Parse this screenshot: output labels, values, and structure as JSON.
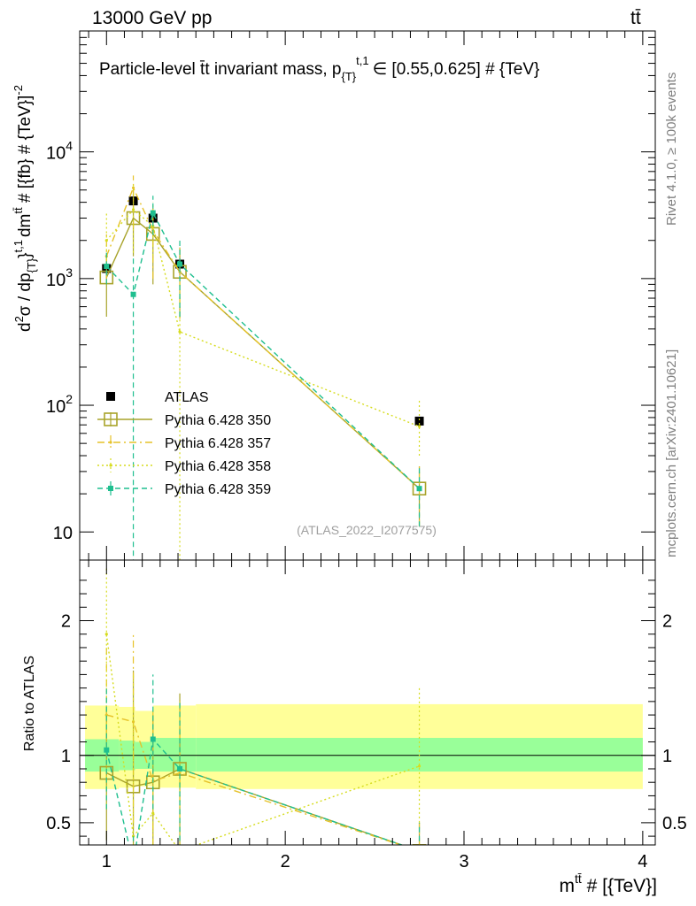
{
  "header": {
    "energy_label": "13000 GeV pp",
    "process_label": "tt̄"
  },
  "side_labels": {
    "rivet": "Rivet 4.1.0, ≥ 100k events",
    "mcplots": "mcplots.cern.ch [arXiv:2401.10621]"
  },
  "chart_data": {
    "type": "scatter",
    "title": "Particle-level t̄t invariant mass, p_{T}^{t,1} ∈ [0.55,0.625] # {TeV}",
    "title_parts": {
      "main": "Particle-level t̄t invariant mass, p",
      "sub": "{T}",
      "sup": "t,1",
      "rest": "∈ [0.55,0.625] # {TeV}"
    },
    "ylabel": "d²σ / dp_{T}^{t,1} dm^{tt̄} # [{fb} # {TeV}⁻²]",
    "ylabel_parts": {
      "a": "d",
      "b": "σ / dp",
      "c": "{T}",
      "d": "}",
      "e": "dm",
      "f": "tt̄",
      "g": " # [{fb} # {TeV}]"
    },
    "ylabel_sups": {
      "s1": "2",
      "s2": "t,1",
      "s3": "-2"
    },
    "xlabel": "m^{tt̄} # [{TeV}]",
    "xlabel_parts": {
      "main": "m",
      "sup": "tt̄",
      "rest": " # [{TeV}]"
    },
    "ratio_ylabel": "Ratio to ATLAS",
    "watermark": "(ATLAS_2022_I2077575)",
    "xlim": [
      0.85,
      4.07
    ],
    "ylim_main": [
      6,
      90000
    ],
    "ylim_ratio": [
      0.335,
      2.45
    ],
    "main_yticks": [
      {
        "value": 10,
        "base": "10",
        "exp": ""
      },
      {
        "value": 100,
        "base": "10",
        "exp": "2"
      },
      {
        "value": 1000,
        "base": "10",
        "exp": "3"
      },
      {
        "value": 10000,
        "base": "10",
        "exp": "4"
      }
    ],
    "ratio_yticks": [
      {
        "value": 0.5,
        "label": "0.5"
      },
      {
        "value": 1,
        "label": "1"
      },
      {
        "value": 2,
        "label": "2"
      }
    ],
    "xticks": [
      {
        "value": 1,
        "label": "1"
      },
      {
        "value": 2,
        "label": "2"
      },
      {
        "value": 3,
        "label": "3"
      },
      {
        "value": 4,
        "label": "4"
      }
    ],
    "bins": [
      [
        0.88,
        1.07
      ],
      [
        1.07,
        1.16
      ],
      [
        1.16,
        1.26
      ],
      [
        1.26,
        1.5
      ],
      [
        1.5,
        4.0
      ]
    ],
    "band_inner": [
      [
        0.88,
        1.12
      ],
      [
        1.07,
        1.11
      ],
      [
        1.16,
        1.1
      ],
      [
        1.26,
        1.13
      ],
      [
        1.5,
        1.13
      ]
    ],
    "band_inner_low": [
      0.88,
      0.89,
      0.9,
      0.88,
      0.88
    ],
    "band_outer_high": [
      1.37,
      1.36,
      1.33,
      1.37,
      1.38
    ],
    "band_outer_low": [
      0.75,
      0.76,
      0.77,
      0.76,
      0.75
    ],
    "series": [
      {
        "name": "ATLAS",
        "kind": "data",
        "color": "#000000",
        "x": [
          1.0,
          1.15,
          1.26,
          1.41,
          2.75
        ],
        "values": [
          1200,
          4100,
          3000,
          1300,
          75
        ],
        "ratio": [
          1,
          1,
          1,
          1,
          1
        ]
      },
      {
        "name": "Pythia 6.428 350",
        "kind": "line-open-square",
        "color": "#a8a32a",
        "dash": "",
        "x": [
          1.0,
          1.15,
          1.26,
          1.41,
          2.75
        ],
        "values": [
          1020,
          3000,
          2250,
          1130,
          22
        ],
        "err_low": [
          500,
          1500,
          900,
          490,
          11
        ],
        "err_high": [
          1500,
          5000,
          3500,
          1760,
          33
        ],
        "ratio": [
          0.87,
          0.77,
          0.8,
          0.9,
          0.29
        ],
        "ratio_err_low": [
          0.37,
          0.0,
          0.3,
          0.3,
          0.1
        ],
        "ratio_err_high": [
          1.37,
          1.63,
          1.3,
          1.46,
          0.5
        ]
      },
      {
        "name": "Pythia 6.428 357",
        "kind": "dash-dot",
        "color": "#e6c229",
        "dash": "8,4,2,4",
        "x": [
          1.0,
          1.15,
          1.26,
          1.41,
          2.75
        ],
        "values": [
          1500,
          5200,
          2400,
          1130,
          22
        ],
        "err_low": [
          1000,
          2500,
          1000,
          480,
          11
        ],
        "err_high": [
          2300,
          6500,
          3800,
          1800,
          33
        ],
        "ratio": [
          1.3,
          1.25,
          0.81,
          0.87,
          0.29
        ],
        "ratio_err_low": [
          0.8,
          0.5,
          0.33,
          0.3,
          0.1
        ],
        "ratio_err_high": [
          1.8,
          1.9,
          1.35,
          1.4,
          0.5
        ]
      },
      {
        "name": "Pythia 6.428 358",
        "kind": "dotted",
        "color": "#d6dc1e",
        "dash": "2,3",
        "x": [
          1.0,
          1.15,
          1.26,
          1.41,
          2.75
        ],
        "values": [
          2000,
          3500,
          2600,
          380,
          68
        ],
        "err_low": [
          1200,
          1600,
          1400,
          4,
          40
        ],
        "err_high": [
          3300,
          5800,
          4000,
          900,
          110
        ],
        "ratio": [
          1.9,
          0.4,
          0.57,
          0.29,
          0.92
        ],
        "ratio_err_low": [
          0.6,
          0.2,
          0.3,
          0.1,
          0.5
        ],
        "ratio_err_high": [
          2.4,
          1.6,
          1.0,
          0.9,
          1.5
        ]
      },
      {
        "name": "Pythia 6.428 359",
        "kind": "dashed-filled-square",
        "color": "#1fbf8f",
        "dash": "6,4",
        "x": [
          1.0,
          1.15,
          1.26,
          1.41,
          2.75
        ],
        "values": [
          1250,
          750,
          3300,
          1300,
          22
        ],
        "err_low": [
          900,
          4,
          2200,
          500,
          11
        ],
        "err_high": [
          1600,
          1500,
          4500,
          2000,
          33
        ],
        "ratio": [
          1.04,
          0.2,
          1.12,
          0.9,
          0.29
        ],
        "ratio_err_low": [
          0.6,
          0.1,
          0.6,
          0.3,
          0.1
        ],
        "ratio_err_high": [
          1.5,
          0.4,
          1.6,
          1.4,
          0.5
        ]
      }
    ],
    "legend_position": "center-left"
  }
}
